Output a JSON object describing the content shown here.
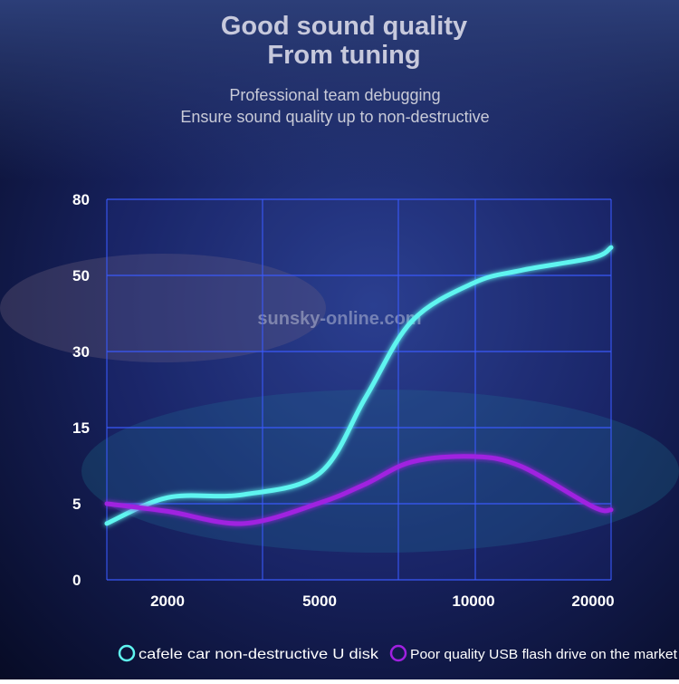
{
  "chart_data": {
    "type": "line",
    "title": "Good sound quality\nFrom tuning",
    "subtitle": "Professional team debugging\nEnsure sound quality up to non-destructive",
    "watermark": "sunsky-online.com",
    "x": [
      1000,
      2000,
      3500,
      5000,
      6500,
      8000,
      10000,
      14000,
      20000,
      25000
    ],
    "xlim": [
      1000,
      25000
    ],
    "xticks": [
      2000,
      5000,
      10000,
      20000
    ],
    "ylim": [
      0,
      80
    ],
    "yticks": [
      0,
      5,
      15,
      30,
      50,
      80
    ],
    "grid": true,
    "series": [
      {
        "name": "cafele car non-destructive U disk",
        "color": "#5ff5f0",
        "values": [
          3.7,
          5.8,
          6.2,
          9,
          21,
          38,
          48,
          52,
          57,
          61
        ]
      },
      {
        "name": "Poor quality USB flash drive on the market",
        "color": "#a020e0",
        "values": [
          5,
          4.5,
          3.7,
          5.1,
          7.6,
          10.5,
          11.2,
          9.9,
          4.8,
          4.6
        ]
      }
    ]
  }
}
